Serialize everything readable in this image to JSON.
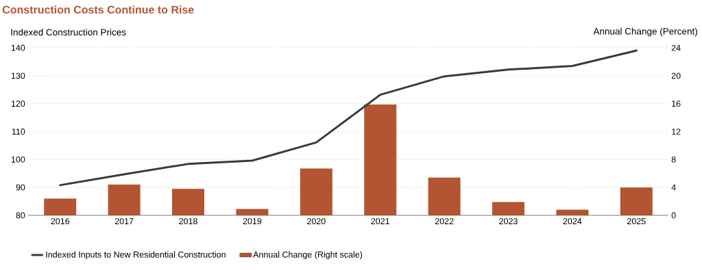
{
  "chart_data": {
    "type": "bar",
    "title": "Construction Costs Continue to Rise",
    "ylabel": "Indexed Construction Prices",
    "y2label": "Annual Change (Percent)",
    "categories": [
      "2016",
      "2017",
      "2018",
      "2019",
      "2020",
      "2021",
      "2022",
      "2023",
      "2024",
      "2025"
    ],
    "series": [
      {
        "name": "Indexed Inputs to New Residential Construction",
        "type": "line",
        "color": "#333d38",
        "values": [
          90.8,
          94.7,
          98.4,
          99.6,
          106.1,
          123.2,
          129.8,
          132.2,
          133.5,
          139
        ]
      },
      {
        "name": "Annual Change (Right scale)",
        "axis": "y2",
        "color": "#b35532",
        "values": [
          2.4,
          4.4,
          3.8,
          0.9,
          6.7,
          15.9,
          5.4,
          1.9,
          0.8,
          4.0
        ]
      }
    ],
    "ylim": [
      80,
      140
    ],
    "yticks": [
      80,
      90,
      100,
      110,
      120,
      130,
      140
    ],
    "y2lim": [
      0,
      24
    ],
    "y2ticks": [
      0,
      4,
      8,
      12,
      16,
      20,
      24
    ],
    "grid": "y",
    "legend": "bottom"
  }
}
